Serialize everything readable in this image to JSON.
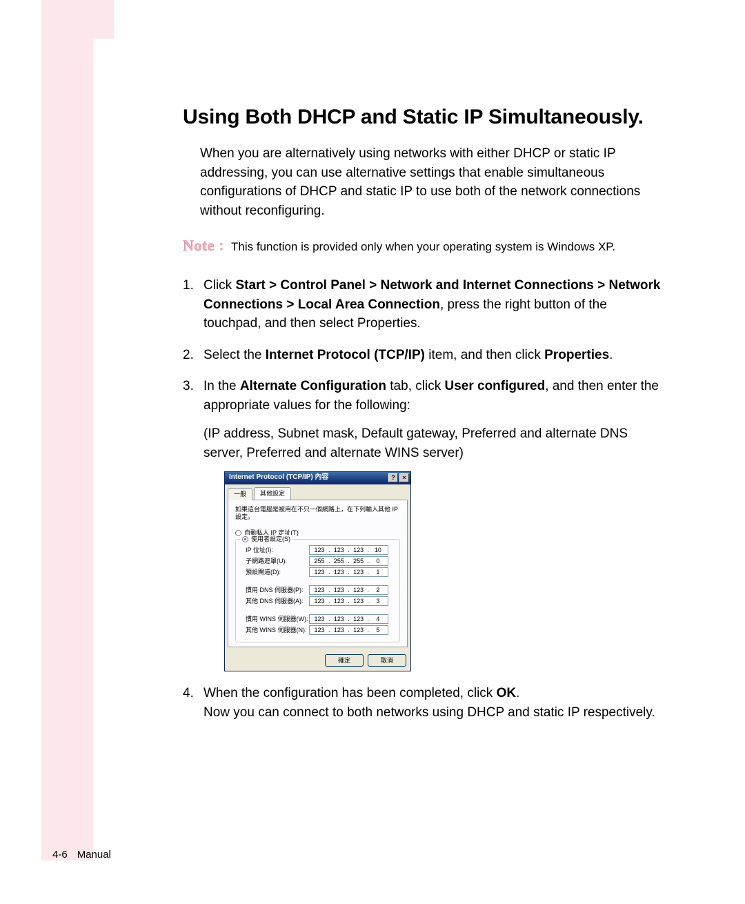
{
  "page": {
    "title": "Using Both DHCP and Static IP Simultaneously.",
    "intro": "When you are alternatively using networks with either DHCP or static IP addressing, you can use alternative settings that enable simultaneous configurations of DHCP and static IP to use both of the network connections without reconfiguring.",
    "note_label": "Note",
    "note_text": "This function is provided only when your operating system is Windows XP.",
    "steps": {
      "s1_a": "Click ",
      "s1_b": "Start > Control Panel > Network and Internet Connections > Network Connections > Local Area Connection",
      "s1_c": ", press the right button of the touchpad, and then select Properties.",
      "s2_a": "Select the ",
      "s2_b": "Internet Protocol (TCP/IP)",
      "s2_c": " item, and then click ",
      "s2_d": "Properties",
      "s2_e": ".",
      "s3_a": "In the ",
      "s3_b": "Alternate Configuration",
      "s3_c": " tab, click ",
      "s3_d": "User configured",
      "s3_e": ", and then enter the appropriate values for the following:",
      "s3_sub": "(IP address, Subnet mask, Default gateway, Preferred and alternate DNS server, Preferred and alternate WINS server)",
      "s4_a": "When the configuration has been completed, click ",
      "s4_b": "OK",
      "s4_c": ".",
      "s4_sub": "Now you can connect to both networks using DHCP and static IP respectively."
    }
  },
  "dialog": {
    "title": "Internet Protocol (TCP/IP) 內容",
    "help_btn": "?",
    "close_btn": "×",
    "tab_general": "一般",
    "tab_alt": "其他設定",
    "desc": "如果這台電腦是被用在不只一個網路上，在下列輸入其他 IP 設定。",
    "radio_auto": "自動私人 IP 定址(T)",
    "radio_user": "使用者設定(S)",
    "fields": {
      "ip": {
        "label": "IP 位址(I):",
        "value": [
          "123",
          "123",
          "123",
          "10"
        ]
      },
      "mask": {
        "label": "子網路遮罩(U):",
        "value": [
          "255",
          "255",
          "255",
          "0"
        ]
      },
      "gw": {
        "label": "預設閘道(D):",
        "value": [
          "123",
          "123",
          "123",
          "1"
        ]
      },
      "dns1": {
        "label": "慣用 DNS 伺服器(P):",
        "value": [
          "123",
          "123",
          "123",
          "2"
        ]
      },
      "dns2": {
        "label": "其他 DNS 伺服器(A):",
        "value": [
          "123",
          "123",
          "123",
          "3"
        ]
      },
      "wins1": {
        "label": "慣用 WINS 伺服器(W):",
        "value": [
          "123",
          "123",
          "123",
          "4"
        ]
      },
      "wins2": {
        "label": "其他 WINS 伺服器(N):",
        "value": [
          "123",
          "123",
          "123",
          "5"
        ]
      }
    },
    "ok": "確定",
    "cancel": "取消"
  },
  "footer": {
    "page_number": "4-6",
    "label": "Manual"
  },
  "colors": {
    "sidebar": "#fce8ea",
    "note_pink": "#f7a8b8",
    "dialog_title_grad_top": "#3a6ea5",
    "dialog_title_grad_bottom": "#0a246a",
    "dialog_bg": "#ece9d8"
  }
}
